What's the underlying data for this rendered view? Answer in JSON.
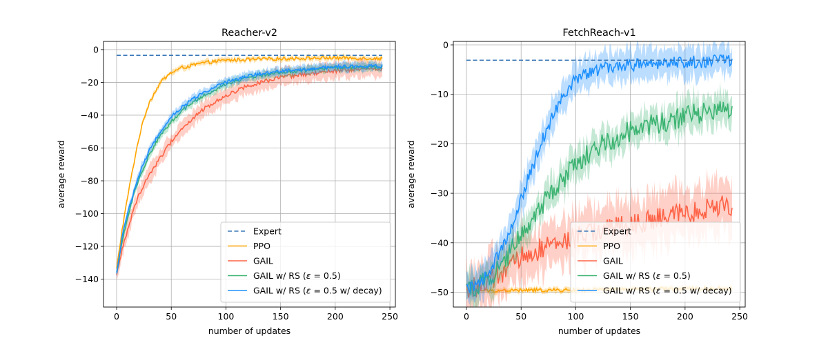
{
  "figure": {
    "background": "#ffffff"
  },
  "chart_data": [
    {
      "type": "line",
      "title": "Reacher-v2",
      "xlabel": "number of updates",
      "ylabel": "average reward",
      "xlim": [
        -12,
        255
      ],
      "ylim": [
        -157,
        5
      ],
      "xticks": [
        0,
        50,
        100,
        150,
        200,
        250
      ],
      "yticks": [
        0,
        -20,
        -40,
        -60,
        -80,
        -100,
        -120,
        -140
      ],
      "grid": true,
      "legend_position": "lower-right",
      "expert": {
        "name": "Expert",
        "value": -3.5,
        "x_range": [
          0,
          243
        ],
        "color": "#3a78b8"
      },
      "series": [
        {
          "name": "PPO",
          "color": "#ffa500",
          "x_end": 243,
          "y_at": [
            [
              0,
              -134
            ],
            [
              5,
              -110
            ],
            [
              10,
              -90
            ],
            [
              15,
              -72
            ],
            [
              20,
              -55
            ],
            [
              25,
              -42
            ],
            [
              30,
              -32
            ],
            [
              40,
              -20
            ],
            [
              50,
              -14
            ],
            [
              60,
              -11
            ],
            [
              80,
              -8
            ],
            [
              100,
              -6.5
            ],
            [
              150,
              -5.5
            ],
            [
              200,
              -5
            ],
            [
              243,
              -5.5
            ]
          ],
          "band": 1.5,
          "noise": 1.0
        },
        {
          "name": "GAIL",
          "color": "#ff6347",
          "x_end": 243,
          "y_at": [
            [
              0,
              -138
            ],
            [
              5,
              -122
            ],
            [
              10,
              -110
            ],
            [
              15,
              -99
            ],
            [
              20,
              -89
            ],
            [
              30,
              -76
            ],
            [
              40,
              -66
            ],
            [
              50,
              -56
            ],
            [
              60,
              -48
            ],
            [
              70,
              -42
            ],
            [
              80,
              -36
            ],
            [
              100,
              -28
            ],
            [
              120,
              -22
            ],
            [
              150,
              -17
            ],
            [
              200,
              -13
            ],
            [
              243,
              -11.5
            ]
          ],
          "band": 5,
          "noise": 1.2
        },
        {
          "name": "GAIL w/ RS (ε = 0.5)",
          "color": "#3cb371",
          "x_end": 243,
          "y_at": [
            [
              0,
              -136
            ],
            [
              5,
              -118
            ],
            [
              10,
              -102
            ],
            [
              15,
              -90
            ],
            [
              20,
              -80
            ],
            [
              30,
              -64
            ],
            [
              40,
              -52
            ],
            [
              50,
              -44
            ],
            [
              60,
              -37
            ],
            [
              70,
              -32
            ],
            [
              80,
              -28
            ],
            [
              100,
              -21
            ],
            [
              120,
              -17
            ],
            [
              150,
              -14
            ],
            [
              200,
              -11
            ],
            [
              243,
              -10.5
            ]
          ],
          "band": 2.5,
          "noise": 1.0
        },
        {
          "name": "GAIL w/ RS (ε = 0.5 w/ decay)",
          "color": "#1e90ff",
          "x_end": 243,
          "y_at": [
            [
              0,
              -137
            ],
            [
              5,
              -115
            ],
            [
              10,
              -100
            ],
            [
              15,
              -88
            ],
            [
              20,
              -77
            ],
            [
              30,
              -61
            ],
            [
              40,
              -50
            ],
            [
              50,
              -41
            ],
            [
              60,
              -35
            ],
            [
              70,
              -30
            ],
            [
              80,
              -26
            ],
            [
              100,
              -20
            ],
            [
              120,
              -16
            ],
            [
              150,
              -13
            ],
            [
              200,
              -10.5
            ],
            [
              243,
              -10
            ]
          ],
          "band": 2.5,
          "noise": 1.0
        }
      ]
    },
    {
      "type": "line",
      "title": "FetchReach-v1",
      "xlabel": "number of updates",
      "ylabel": "average reward",
      "xlim": [
        -12,
        255
      ],
      "ylim": [
        -53,
        0.7
      ],
      "xticks": [
        0,
        50,
        100,
        150,
        200,
        250
      ],
      "yticks": [
        0,
        -10,
        -20,
        -30,
        -40,
        -50
      ],
      "grid": true,
      "legend_position": "lower-right",
      "expert": {
        "name": "Expert",
        "value": -3.1,
        "x_range": [
          0,
          243
        ],
        "color": "#3a78b8"
      },
      "series": [
        {
          "name": "PPO",
          "color": "#ffa500",
          "x_end": 243,
          "y_at": [
            [
              0,
              -49.5
            ],
            [
              20,
              -49.7
            ],
            [
              60,
              -49.6
            ],
            [
              100,
              -49.6
            ],
            [
              150,
              -49.4
            ],
            [
              200,
              -49.3
            ],
            [
              243,
              -49.3
            ]
          ],
          "band": 0.5,
          "noise": 0.35
        },
        {
          "name": "GAIL",
          "color": "#ff6347",
          "x_end": 243,
          "y_at": [
            [
              0,
              -49.5
            ],
            [
              10,
              -49
            ],
            [
              20,
              -48
            ],
            [
              30,
              -46.5
            ],
            [
              40,
              -45
            ],
            [
              50,
              -43
            ],
            [
              60,
              -42
            ],
            [
              70,
              -41
            ],
            [
              80,
              -40.5
            ],
            [
              100,
              -39
            ],
            [
              120,
              -37.5
            ],
            [
              150,
              -36.5
            ],
            [
              180,
              -35
            ],
            [
              200,
              -34
            ],
            [
              220,
              -33
            ],
            [
              243,
              -32.5
            ]
          ],
          "band": 5,
          "noise": 2.2
        },
        {
          "name": "GAIL w/ RS (ε = 0.5)",
          "color": "#3cb371",
          "x_end": 243,
          "y_at": [
            [
              0,
              -49.5
            ],
            [
              10,
              -48.5
            ],
            [
              20,
              -47
            ],
            [
              30,
              -45
            ],
            [
              40,
              -42
            ],
            [
              50,
              -38
            ],
            [
              60,
              -35
            ],
            [
              70,
              -32
            ],
            [
              80,
              -29
            ],
            [
              90,
              -27
            ],
            [
              100,
              -24
            ],
            [
              120,
              -20.5
            ],
            [
              150,
              -17.5
            ],
            [
              180,
              -15.5
            ],
            [
              200,
              -14.5
            ],
            [
              220,
              -13.5
            ],
            [
              243,
              -12.5
            ]
          ],
          "band": 3,
          "noise": 2.2
        },
        {
          "name": "GAIL w/ RS (ε = 0.5 w/ decay)",
          "color": "#1e90ff",
          "x_end": 243,
          "y_at": [
            [
              0,
              -49.5
            ],
            [
              10,
              -48.5
            ],
            [
              20,
              -46
            ],
            [
              30,
              -42
            ],
            [
              40,
              -37
            ],
            [
              50,
              -31
            ],
            [
              60,
              -25
            ],
            [
              70,
              -19
            ],
            [
              80,
              -14
            ],
            [
              90,
              -10
            ],
            [
              100,
              -7
            ],
            [
              120,
              -5
            ],
            [
              150,
              -4
            ],
            [
              200,
              -3.5
            ],
            [
              243,
              -3.2
            ]
          ],
          "band": 3,
          "noise": 1.3
        }
      ]
    }
  ]
}
